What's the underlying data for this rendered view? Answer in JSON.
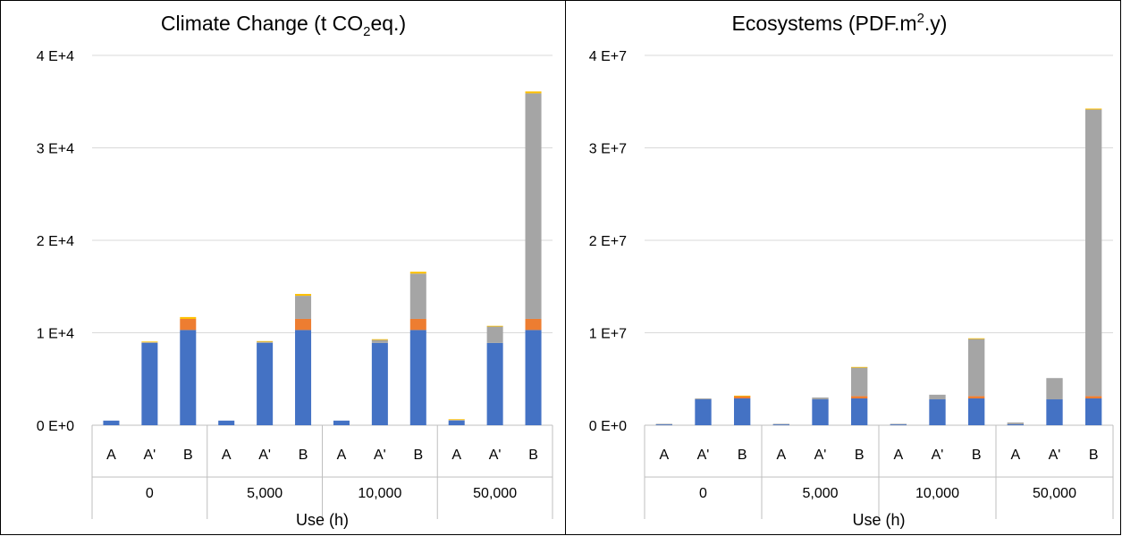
{
  "colors": {
    "blue": "#4472C4",
    "orange": "#ED7D31",
    "gray": "#A5A5A5",
    "yellow": "#FFC000",
    "grid": "#D9D9D9",
    "axis": "#BFBFBF"
  },
  "chart_data": [
    {
      "type": "bar",
      "stacked": true,
      "title_text": "Climate Change (t CO",
      "title_sub": "2",
      "title_suffix": "eq.)",
      "xlabel": "Use (h)",
      "ylabel": "",
      "ylim": [
        0,
        40000
      ],
      "y_ticks": [
        0,
        10000,
        20000,
        30000,
        40000
      ],
      "y_tick_labels": [
        "0 E+0",
        "1 E+4",
        "2 E+4",
        "3 E+4",
        "4 E+4"
      ],
      "groups": [
        "0",
        "5,000",
        "10,000",
        "50,000"
      ],
      "categories": [
        "A",
        "A'",
        "B"
      ],
      "series": [
        {
          "color": "#4472C4",
          "values": [
            [
              500,
              8900,
              10300
            ],
            [
              500,
              8900,
              10300
            ],
            [
              500,
              8900,
              10300
            ],
            [
              500,
              8900,
              10300
            ]
          ]
        },
        {
          "color": "#ED7D31",
          "values": [
            [
              0,
              0,
              1200
            ],
            [
              0,
              0,
              1200
            ],
            [
              0,
              0,
              1200
            ],
            [
              0,
              0,
              1200
            ]
          ]
        },
        {
          "color": "#A5A5A5",
          "values": [
            [
              0,
              100,
              0
            ],
            [
              0,
              150,
              2500
            ],
            [
              0,
              350,
              4900
            ],
            [
              100,
              1800,
              24400
            ]
          ]
        },
        {
          "color": "#FFC000",
          "values": [
            [
              0,
              50,
              200
            ],
            [
              0,
              50,
              200
            ],
            [
              0,
              50,
              200
            ],
            [
              50,
              50,
              200
            ]
          ]
        }
      ],
      "grid": true,
      "legend": "none"
    },
    {
      "type": "bar",
      "stacked": true,
      "title_text": "Ecosystems (PDF.m",
      "title_sup": "2",
      "title_suffix": ".y)",
      "xlabel": "Use (h)",
      "ylabel": "",
      "ylim": [
        0,
        40000000
      ],
      "y_ticks": [
        0,
        10000000,
        20000000,
        30000000,
        40000000
      ],
      "y_tick_labels": [
        "0 E+0",
        "1 E+7",
        "2 E+7",
        "3 E+7",
        "4 E+7"
      ],
      "groups": [
        "0",
        "5,000",
        "10,000",
        "50,000"
      ],
      "categories": [
        "A",
        "A'",
        "B"
      ],
      "series": [
        {
          "color": "#4472C4",
          "values": [
            [
              100000,
              2800000,
              2900000
            ],
            [
              100000,
              2800000,
              2900000
            ],
            [
              100000,
              2800000,
              2900000
            ],
            [
              100000,
              2800000,
              2900000
            ]
          ]
        },
        {
          "color": "#ED7D31",
          "values": [
            [
              0,
              0,
              250000
            ],
            [
              0,
              0,
              250000
            ],
            [
              0,
              0,
              250000
            ],
            [
              0,
              0,
              250000
            ]
          ]
        },
        {
          "color": "#A5A5A5",
          "values": [
            [
              50000,
              100000,
              0
            ],
            [
              50000,
              200000,
              3100000
            ],
            [
              50000,
              500000,
              6200000
            ],
            [
              200000,
              2300000,
              31000000
            ]
          ]
        },
        {
          "color": "#FFC000",
          "values": [
            [
              0,
              0,
              50000
            ],
            [
              0,
              0,
              50000
            ],
            [
              0,
              0,
              50000
            ],
            [
              0,
              0,
              100000
            ]
          ]
        }
      ],
      "grid": true,
      "legend": "none"
    }
  ]
}
